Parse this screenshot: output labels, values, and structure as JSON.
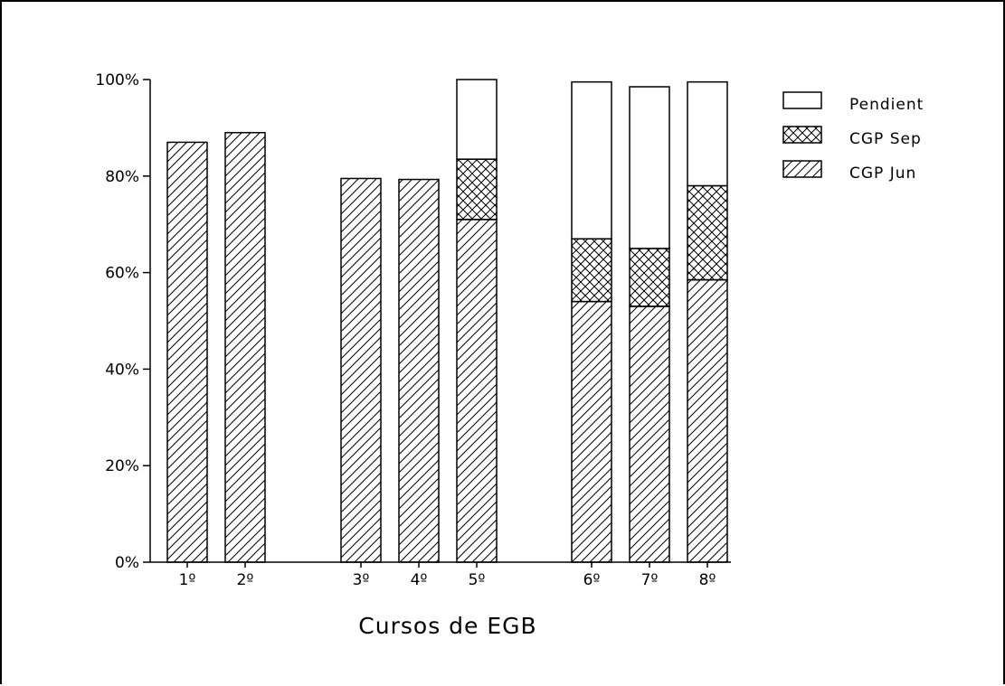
{
  "chart_data": {
    "type": "bar",
    "stacked": true,
    "title": "",
    "xlabel": "Cursos de EGB",
    "ylabel": "",
    "ylim": [
      0,
      100
    ],
    "yticks": [
      "0%",
      "20%",
      "40%",
      "60%",
      "80%",
      "100%"
    ],
    "grid": false,
    "legend_position": "top-right",
    "categories": [
      "1º",
      "2º",
      "3º",
      "4º",
      "5º",
      "6º",
      "7º",
      "8º"
    ],
    "groups": [
      [
        0,
        1
      ],
      [
        2,
        3,
        4
      ],
      [
        5,
        6,
        7
      ]
    ],
    "series": [
      {
        "name": "CGP Jun",
        "pattern": "diagonal-hatch",
        "values": [
          87,
          89,
          79.5,
          79.3,
          71,
          54,
          53,
          58.5
        ]
      },
      {
        "name": "CGP Sep",
        "pattern": "crosshatch",
        "values": [
          0,
          0,
          0,
          0,
          12.5,
          13,
          12,
          19.5
        ]
      },
      {
        "name": "Pendient",
        "pattern": "none",
        "values": [
          0,
          0,
          0,
          0,
          16.5,
          32.5,
          33.5,
          21.5
        ]
      }
    ],
    "legend_order": [
      "Pendient",
      "CGP Sep",
      "CGP Jun"
    ],
    "colors": {
      "ink": "#000000",
      "fill": "#ffffff"
    }
  }
}
